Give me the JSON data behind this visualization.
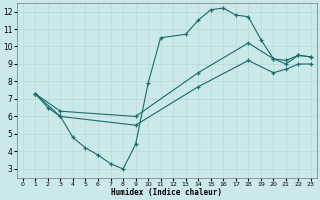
{
  "xlabel": "Humidex (Indice chaleur)",
  "xlim": [
    -0.5,
    23.5
  ],
  "ylim": [
    2.5,
    12.5
  ],
  "xticks": [
    0,
    1,
    2,
    3,
    4,
    5,
    6,
    7,
    8,
    9,
    10,
    11,
    12,
    13,
    14,
    15,
    16,
    17,
    18,
    19,
    20,
    21,
    22,
    23
  ],
  "yticks": [
    3,
    4,
    5,
    6,
    7,
    8,
    9,
    10,
    11,
    12
  ],
  "bg_color": "#cce9e9",
  "line_color": "#1a6b6b",
  "grid_color": "#b8d8d8",
  "line1_x": [
    1,
    2,
    3,
    4,
    5,
    6,
    7,
    8,
    9,
    10,
    11,
    13,
    14,
    15,
    16,
    17,
    18,
    19,
    20,
    21,
    22,
    23
  ],
  "line1_y": [
    7.3,
    6.5,
    6.0,
    4.8,
    4.2,
    3.8,
    3.3,
    3.0,
    4.4,
    7.9,
    10.5,
    10.7,
    11.5,
    12.1,
    12.2,
    11.8,
    11.7,
    10.4,
    9.3,
    9.0,
    9.5,
    9.4
  ],
  "line2_x": [
    1,
    3,
    9,
    14,
    18,
    20,
    21,
    22,
    23
  ],
  "line2_y": [
    7.3,
    6.3,
    6.0,
    8.5,
    10.2,
    9.3,
    9.2,
    9.5,
    9.4
  ],
  "line3_x": [
    1,
    3,
    9,
    14,
    18,
    20,
    21,
    22,
    23
  ],
  "line3_y": [
    7.3,
    6.0,
    5.5,
    7.7,
    9.2,
    8.5,
    8.7,
    9.0,
    9.0
  ]
}
